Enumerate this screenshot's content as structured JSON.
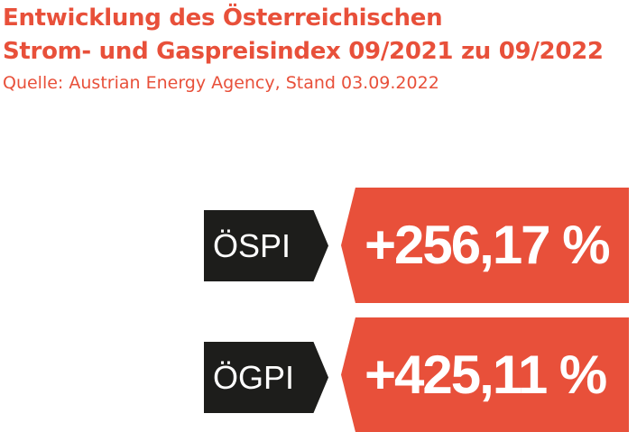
{
  "header": {
    "title_line1": "Entwicklung des Österreichischen",
    "title_line2": "Strom- und Gaspreisindex 09/2021 zu 09/2022",
    "source": "Quelle: Austrian Energy Agency, Stand 03.09.2022"
  },
  "indices": [
    {
      "label": "ÖSPI",
      "value": "+256,17 %"
    },
    {
      "label": "ÖGPI",
      "value": "+425,11 %"
    }
  ],
  "colors": {
    "accent": "#e8503a",
    "tag_background": "#1d1d1b",
    "text_on_color": "#ffffff",
    "page_background": "#ffffff"
  }
}
